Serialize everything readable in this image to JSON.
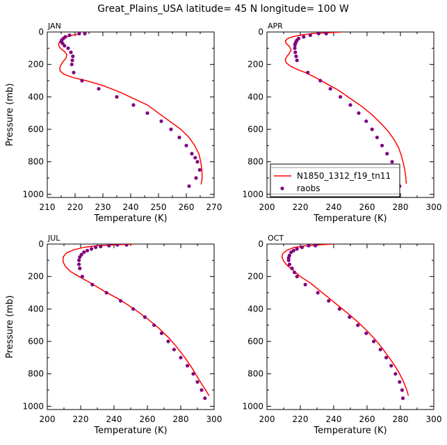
{
  "figure": {
    "title": "Great_Plains_USA   latitude= 45 N longitude= 100 W"
  },
  "chart_data": [
    {
      "type": "scatter",
      "month": "JAN",
      "xlabel": "Temperature (K)",
      "ylabel": "Pressure (mb)",
      "xlim": [
        210,
        270
      ],
      "ylim": [
        1020,
        0
      ],
      "xticks": [
        210,
        220,
        230,
        240,
        250,
        260,
        270
      ],
      "yticks": [
        0,
        200,
        400,
        600,
        800,
        1000
      ],
      "series": [
        {
          "name": "N1850_1312_f19_tn11",
          "kind": "line",
          "color": "#ff0000",
          "x": [
            222,
            219,
            217,
            215.5,
            214.5,
            214,
            214.3,
            215,
            216.2,
            217,
            216.8,
            215.8,
            215,
            214.5,
            214.6,
            216,
            219,
            224,
            230,
            236,
            241,
            246,
            250,
            254,
            258,
            261,
            263,
            264.5,
            265.2,
            265.6,
            265.7,
            265.3
          ],
          "y": [
            10,
            20,
            30,
            45,
            60,
            75,
            90,
            105,
            120,
            140,
            160,
            180,
            200,
            220,
            240,
            260,
            280,
            300,
            330,
            370,
            410,
            450,
            500,
            550,
            600,
            650,
            700,
            750,
            800,
            850,
            900,
            940
          ]
        },
        {
          "name": "raobs",
          "kind": "points",
          "color": "#800080",
          "x": [
            223.5,
            221.5,
            218,
            216.5,
            215.8,
            215.2,
            215,
            215.5,
            216.2,
            217.5,
            218.5,
            219.2,
            219,
            218.8,
            219.5,
            222.5,
            228.5,
            235,
            241,
            246,
            251,
            254.5,
            257.5,
            260,
            262,
            263.2,
            264,
            264.8,
            263.5,
            261
          ],
          "y": [
            10,
            10,
            20,
            30,
            40,
            50,
            60,
            70,
            85,
            100,
            125,
            150,
            175,
            200,
            250,
            300,
            350,
            400,
            450,
            500,
            550,
            600,
            650,
            700,
            750,
            775,
            800,
            850,
            900,
            950
          ]
        }
      ]
    },
    {
      "type": "scatter",
      "month": "APR",
      "xlabel": "Temperature (K)",
      "ylabel": "",
      "xlim": [
        200,
        300
      ],
      "ylim": [
        1020,
        0
      ],
      "xticks": [
        200,
        220,
        240,
        260,
        280,
        300
      ],
      "yticks": [
        0,
        200,
        400,
        600,
        800,
        1000
      ],
      "legend": {
        "placement": "bottom-left",
        "entries": [
          "N1850_1312_f19_tn11",
          "raobs"
        ]
      },
      "series": [
        {
          "name": "N1850_1312_f19_tn11",
          "kind": "line",
          "color": "#ff0000",
          "x": [
            245,
            235,
            227,
            221,
            216,
            212.5,
            211,
            211.5,
            213.5,
            214.5,
            213.5,
            212,
            211,
            211.5,
            214,
            218,
            223,
            229,
            236,
            243,
            250,
            257,
            263,
            268,
            272.5,
            276,
            278.8,
            280.5,
            281.8,
            282.8,
            283.3,
            283.5
          ],
          "y": [
            0,
            5,
            10,
            18,
            28,
            40,
            55,
            70,
            90,
            110,
            130,
            150,
            170,
            190,
            210,
            230,
            250,
            280,
            320,
            360,
            410,
            460,
            510,
            560,
            610,
            660,
            710,
            760,
            810,
            860,
            900,
            935
          ]
        },
        {
          "name": "raobs",
          "kind": "points",
          "color": "#800080",
          "x": [
            235.5,
            231,
            226,
            222,
            219,
            218,
            217.5,
            217,
            216.8,
            216.7,
            217,
            217.5,
            218,
            224.5,
            232,
            238,
            244,
            250,
            255,
            259.5,
            263,
            266,
            269,
            272,
            275,
            277,
            278.5,
            279.5
          ],
          "y": [
            10,
            10,
            20,
            30,
            40,
            50,
            60,
            70,
            80,
            100,
            125,
            150,
            175,
            250,
            300,
            350,
            400,
            450,
            500,
            550,
            600,
            650,
            700,
            750,
            800,
            850,
            900,
            950
          ]
        }
      ]
    },
    {
      "type": "scatter",
      "month": "JUL",
      "xlabel": "Temperature (K)",
      "ylabel": "Pressure (mb)",
      "xlim": [
        200,
        300
      ],
      "ylim": [
        1020,
        0
      ],
      "xticks": [
        200,
        220,
        240,
        260,
        280,
        300
      ],
      "yticks": [
        0,
        200,
        400,
        600,
        800,
        1000
      ],
      "series": [
        {
          "name": "N1850_1312_f19_tn11",
          "kind": "line",
          "color": "#ff0000",
          "x": [
            252,
            240,
            230,
            222,
            216,
            211.5,
            209.5,
            209.5,
            211,
            214,
            219,
            226,
            234,
            243,
            252,
            260,
            267,
            273,
            278,
            282.5,
            286.5,
            290,
            293,
            295.5,
            297
          ],
          "y": [
            0,
            5,
            10,
            20,
            35,
            55,
            80,
            110,
            140,
            170,
            200,
            240,
            290,
            340,
            400,
            460,
            520,
            580,
            640,
            700,
            760,
            820,
            870,
            910,
            935
          ]
        },
        {
          "name": "raobs",
          "kind": "points",
          "color": "#800080",
          "x": [
            247.5,
            242,
            237,
            232,
            229,
            226.5,
            224,
            222,
            220.5,
            219.5,
            219,
            219,
            219.5,
            221,
            227,
            235.5,
            244,
            251.5,
            258.5,
            264,
            268.5,
            272.5,
            276,
            280,
            284,
            287.5,
            290,
            292.5,
            294.5
          ],
          "y": [
            5,
            5,
            10,
            15,
            20,
            30,
            40,
            50,
            65,
            80,
            100,
            125,
            150,
            200,
            250,
            300,
            350,
            400,
            450,
            500,
            550,
            600,
            650,
            700,
            750,
            800,
            850,
            900,
            950
          ]
        }
      ]
    },
    {
      "type": "scatter",
      "month": "OCT",
      "xlabel": "Temperature (K)",
      "ylabel": "",
      "xlim": [
        200,
        300
      ],
      "ylim": [
        1020,
        0
      ],
      "xticks": [
        200,
        220,
        240,
        260,
        280,
        300
      ],
      "yticks": [
        0,
        200,
        400,
        600,
        800,
        1000
      ],
      "series": [
        {
          "name": "N1850_1312_f19_tn11",
          "kind": "line",
          "color": "#ff0000",
          "x": [
            240,
            230,
            222,
            216,
            212,
            209.5,
            209,
            210,
            212,
            215.5,
            220,
            226,
            232,
            238,
            244,
            250,
            255.5,
            260.5,
            265,
            269,
            272.5,
            276,
            279,
            281.5,
            283.5,
            284.8
          ],
          "y": [
            0,
            5,
            12,
            22,
            38,
            58,
            80,
            105,
            130,
            160,
            200,
            240,
            290,
            340,
            390,
            440,
            490,
            540,
            590,
            640,
            690,
            740,
            790,
            840,
            890,
            935
          ]
        },
        {
          "name": "raobs",
          "kind": "points",
          "color": "#800080",
          "x": [
            229,
            225,
            221,
            218,
            216,
            214.5,
            213.5,
            213,
            213,
            213.5,
            215,
            216.5,
            218,
            223,
            230.5,
            237,
            243.5,
            249.5,
            254.5,
            259.5,
            264,
            268,
            271.5,
            274.5,
            277,
            279.5,
            281,
            281.5
          ],
          "y": [
            10,
            10,
            20,
            30,
            40,
            50,
            70,
            85,
            100,
            125,
            150,
            175,
            200,
            250,
            300,
            350,
            400,
            450,
            500,
            550,
            600,
            650,
            700,
            750,
            800,
            850,
            900,
            950
          ]
        }
      ]
    }
  ]
}
